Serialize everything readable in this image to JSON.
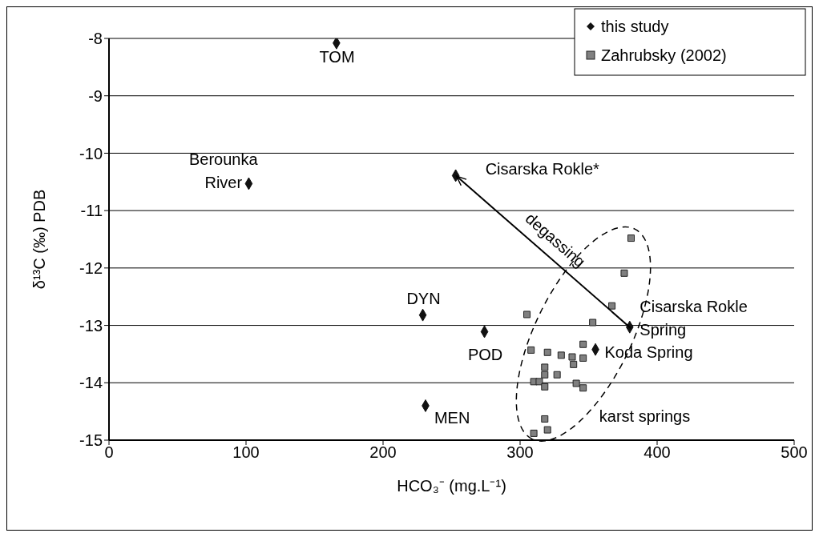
{
  "chart_data": {
    "type": "scatter",
    "xlabel": "HCO₃⁻ (mg.L⁻¹)",
    "ylabel": "δ¹³C (‰) PDB",
    "xlim": [
      0,
      500
    ],
    "xticks": [
      0,
      100,
      200,
      300,
      400,
      500
    ],
    "ylim": [
      -15,
      -8
    ],
    "yticks": [
      -15,
      -14,
      -13,
      -12,
      -11,
      -10,
      -9,
      -8
    ],
    "grid": "y",
    "legend": "top right",
    "series": [
      {
        "name": "this study",
        "color": "#111111",
        "marker": "diamond",
        "x": [
          166,
          102,
          253,
          229,
          274,
          231,
          355,
          380
        ],
        "values": [
          -8.08,
          -10.53,
          -10.39,
          -12.82,
          -13.11,
          -14.4,
          -13.42,
          -13.03
        ]
      },
      {
        "name": "Zahrubsky (2002)",
        "color": "#808080",
        "marker": "square",
        "x": [
          381,
          376,
          367,
          353,
          305,
          308,
          320,
          330,
          338,
          346,
          346,
          339,
          318,
          318,
          327,
          310,
          314,
          318,
          341,
          346,
          318,
          310,
          320
        ],
        "values": [
          -11.48,
          -12.09,
          -12.66,
          -12.95,
          -12.81,
          -13.43,
          -13.47,
          -13.52,
          -13.55,
          -13.33,
          -13.57,
          -13.68,
          -13.73,
          -13.86,
          -13.86,
          -13.98,
          -13.98,
          -14.07,
          -14.01,
          -14.09,
          -14.63,
          -14.88,
          -14.82
        ]
      }
    ],
    "annotations": [
      {
        "text": "TOM",
        "x": 166,
        "y": -8.08
      },
      {
        "text": "Berounka\nRiver",
        "x": 102,
        "y": -10.53
      },
      {
        "text": "Cisarska Rokle*",
        "x": 253,
        "y": -10.39
      },
      {
        "text": "DYN",
        "x": 229,
        "y": -12.82
      },
      {
        "text": "POD",
        "x": 274,
        "y": -13.11
      },
      {
        "text": "MEN",
        "x": 231,
        "y": -14.4
      },
      {
        "text": "Koda Spring",
        "x": 355,
        "y": -13.42
      },
      {
        "text": "Cisarska Rokle\nSpring",
        "x": 380,
        "y": -13.03
      },
      "degassing",
      "karst springs"
    ]
  }
}
